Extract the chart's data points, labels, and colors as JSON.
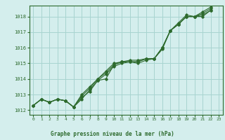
{
  "title": "Graphe pression niveau de la mer (hPa)",
  "background_color": "#d4eeed",
  "grid_color": "#a8d4d0",
  "line_color": "#2d6a2d",
  "marker_color": "#2d6a2d",
  "xlabel": "Graphe pression niveau de la mer (hPa)",
  "xlim": [
    -0.5,
    23.5
  ],
  "ylim": [
    1011.7,
    1018.7
  ],
  "yticks": [
    1012,
    1013,
    1014,
    1015,
    1016,
    1017,
    1018
  ],
  "xticks": [
    0,
    1,
    2,
    3,
    4,
    5,
    6,
    7,
    8,
    9,
    10,
    11,
    12,
    13,
    14,
    15,
    16,
    17,
    18,
    19,
    20,
    21,
    22,
    23
  ],
  "series1": [
    1012.3,
    1012.7,
    1012.5,
    1012.7,
    1012.6,
    1012.2,
    1012.7,
    1013.3,
    1013.9,
    1014.0,
    1014.9,
    1015.1,
    1015.1,
    1015.1,
    1015.3,
    1015.3,
    1015.9,
    1017.1,
    1017.5,
    1018.0,
    1018.0,
    1018.0,
    1018.4
  ],
  "series2": [
    1012.3,
    1012.7,
    1012.5,
    1012.7,
    1012.6,
    1012.2,
    1013.0,
    1013.5,
    1014.0,
    1014.4,
    1014.9,
    1015.1,
    1015.2,
    1015.2,
    1015.3,
    1015.3,
    1016.0,
    1017.1,
    1017.5,
    1018.0,
    1018.0,
    1018.2,
    1018.5
  ],
  "series3": [
    1012.3,
    1012.7,
    1012.5,
    1012.7,
    1012.6,
    1012.2,
    1012.8,
    1013.2,
    1013.9,
    1014.3,
    1014.8,
    1015.0,
    1015.1,
    1015.0,
    1015.2,
    1015.3,
    1016.0,
    1017.1,
    1017.6,
    1018.1,
    1018.0,
    1018.3,
    1018.6
  ],
  "series4": [
    1012.3,
    1012.7,
    1012.5,
    1012.7,
    1012.6,
    1012.2,
    1012.9,
    1013.4,
    1014.0,
    1014.5,
    1015.0,
    1015.1,
    1015.1,
    1015.1,
    1015.3,
    1015.3,
    1016.0,
    1017.1,
    1017.5,
    1018.0,
    1018.0,
    1018.1,
    1018.4
  ]
}
